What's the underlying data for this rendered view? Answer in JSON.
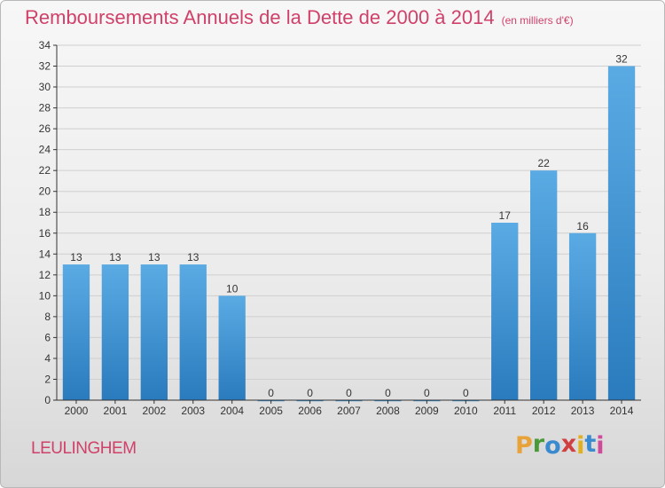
{
  "header": {
    "title": "Remboursements Annuels de la Dette de 2000 à 2014",
    "unit": "(en milliers d'€)"
  },
  "footer": {
    "commune": "LEULINGHEM",
    "logo": [
      "P",
      "r",
      "o",
      "x",
      "i",
      "t",
      "i"
    ],
    "logo_colors": [
      "#e8a23a",
      "#4a9a3a",
      "#3a8ad0",
      "#d04040",
      "#e0b020",
      "#3a8ad0",
      "#d04a9a"
    ]
  },
  "colors": {
    "title": "#d0416a",
    "bar_top": "#5aabe4",
    "bar_bottom": "#2a7bbd",
    "grid": "#cfcfcf"
  },
  "chart_data": {
    "type": "bar",
    "title": "Remboursements Annuels de la Dette de 2000 à 2014",
    "subtitle": "(en milliers d'€)",
    "categories": [
      "2000",
      "2001",
      "2002",
      "2003",
      "2004",
      "2005",
      "2006",
      "2007",
      "2008",
      "2009",
      "2010",
      "2011",
      "2012",
      "2013",
      "2014"
    ],
    "values": [
      13,
      13,
      13,
      13,
      10,
      0,
      0,
      0,
      0,
      0,
      0,
      17,
      22,
      16,
      32
    ],
    "ylim": [
      0,
      34
    ],
    "yticks": [
      0,
      2,
      4,
      6,
      8,
      10,
      12,
      14,
      16,
      18,
      20,
      22,
      24,
      26,
      28,
      30,
      32,
      34
    ],
    "grid": true,
    "legend": "none"
  }
}
